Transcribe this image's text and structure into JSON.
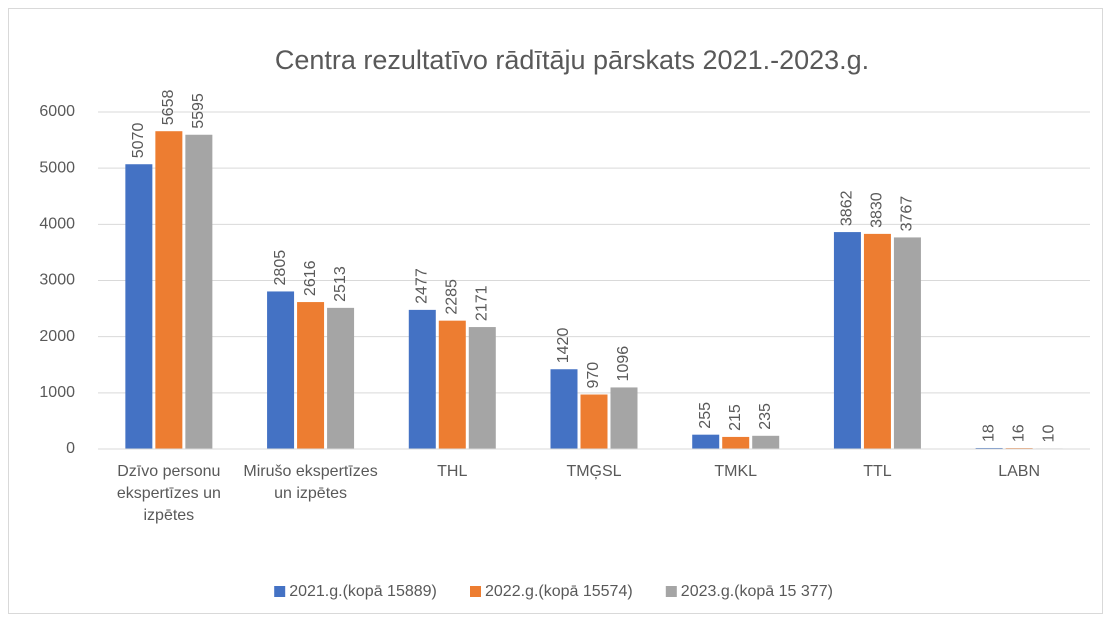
{
  "chart_data": {
    "type": "bar",
    "title": "Centra rezultatīvo rādītāju pārskats 2021.-2023.g.",
    "categories": [
      "Dzīvo personu ekspertīzes un izpētes",
      "Mirušo ekspertīzes un izpētes",
      "THL",
      "TMĢSL",
      "TMKL",
      "TTL",
      "LABN"
    ],
    "series": [
      {
        "name": "2021.g.(kopā 15889)",
        "color": "#4472c4",
        "values": [
          5070,
          2805,
          2477,
          1420,
          255,
          3862,
          18
        ]
      },
      {
        "name": "2022.g.(kopā 15574)",
        "color": "#ed7d31",
        "values": [
          5658,
          2616,
          2285,
          970,
          215,
          3830,
          16
        ]
      },
      {
        "name": "2023.g.(kopā 15 377)",
        "color": "#a5a5a5",
        "values": [
          5595,
          2513,
          2171,
          1096,
          235,
          3767,
          10
        ]
      }
    ],
    "ylim": [
      0,
      6000
    ],
    "yticks": [
      0,
      1000,
      2000,
      3000,
      4000,
      5000,
      6000
    ],
    "grid": true,
    "legend": "bottom"
  }
}
